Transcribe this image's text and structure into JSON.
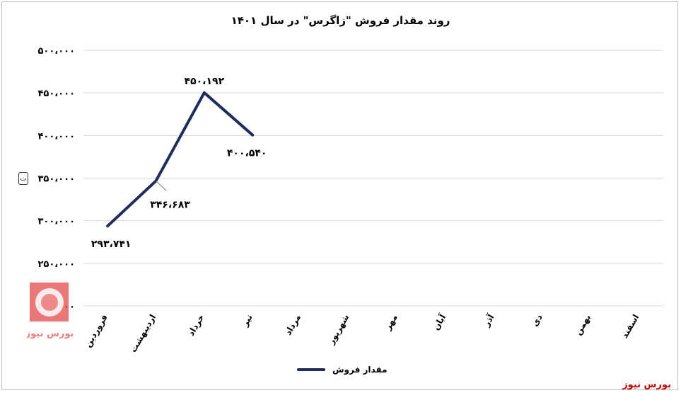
{
  "chart_data": {
    "type": "line",
    "title": "روند مقدار فروش \"زاگرس\" در سال ۱۴۰۱",
    "categories": [
      "فروردین",
      "اردیبهشت",
      "خرداد",
      "تیر",
      "مرداد",
      "شهریور",
      "مهر",
      "آبان",
      "آذر",
      "دی",
      "بهمن",
      "اسفند"
    ],
    "series": [
      {
        "name": "مقدار فروش",
        "color": "#1f2d5a",
        "values": [
          293741,
          346683,
          450192,
          400540,
          null,
          null,
          null,
          null,
          null,
          null,
          null,
          null
        ],
        "labels": [
          "۲۹۳،۷۴۱",
          "۳۴۶،۶۸۳",
          "۴۵۰،۱۹۲",
          "۴۰۰،۵۴۰"
        ]
      }
    ],
    "y_ticks": [
      200000,
      250000,
      300000,
      350000,
      400000,
      450000,
      500000
    ],
    "y_tick_labels": [
      "۲۰۰،۰۰۰",
      "۲۵۰،۰۰۰",
      "۳۰۰،۰۰۰",
      "۳۵۰،۰۰۰",
      "۴۰۰،۰۰۰",
      "۴۵۰،۰۰۰",
      "۵۰۰،۰۰۰"
    ],
    "ylim": [
      200000,
      500000
    ],
    "ylabel_icon": "tonnage-unit-icon",
    "grid": true,
    "legend_position": "bottom"
  },
  "watermark": "بورس نیوز",
  "logo_text": "بورس نیوز"
}
